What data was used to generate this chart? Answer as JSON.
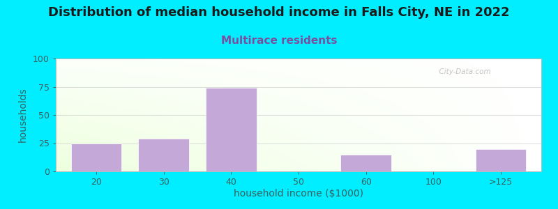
{
  "title": "Distribution of median household income in Falls City, NE in 2022",
  "subtitle": "Multirace residents",
  "xlabel": "household income ($1000)",
  "ylabel": "households",
  "categories": [
    "20",
    "30",
    "40",
    "50",
    "60",
    "100",
    ">125"
  ],
  "values": [
    25,
    29,
    74,
    0,
    15,
    0,
    20
  ],
  "bar_color": "#c4a8d8",
  "background_color": "#00EEFF",
  "title_fontsize": 13,
  "subtitle_fontsize": 11,
  "subtitle_color": "#7b4fa0",
  "title_color": "#1a1a1a",
  "ylabel_color": "#3a6060",
  "xlabel_color": "#3a6060",
  "tick_color": "#3a6060",
  "ylim": [
    0,
    100
  ],
  "yticks": [
    0,
    25,
    50,
    75,
    100
  ],
  "watermark": "  City-Data.com"
}
